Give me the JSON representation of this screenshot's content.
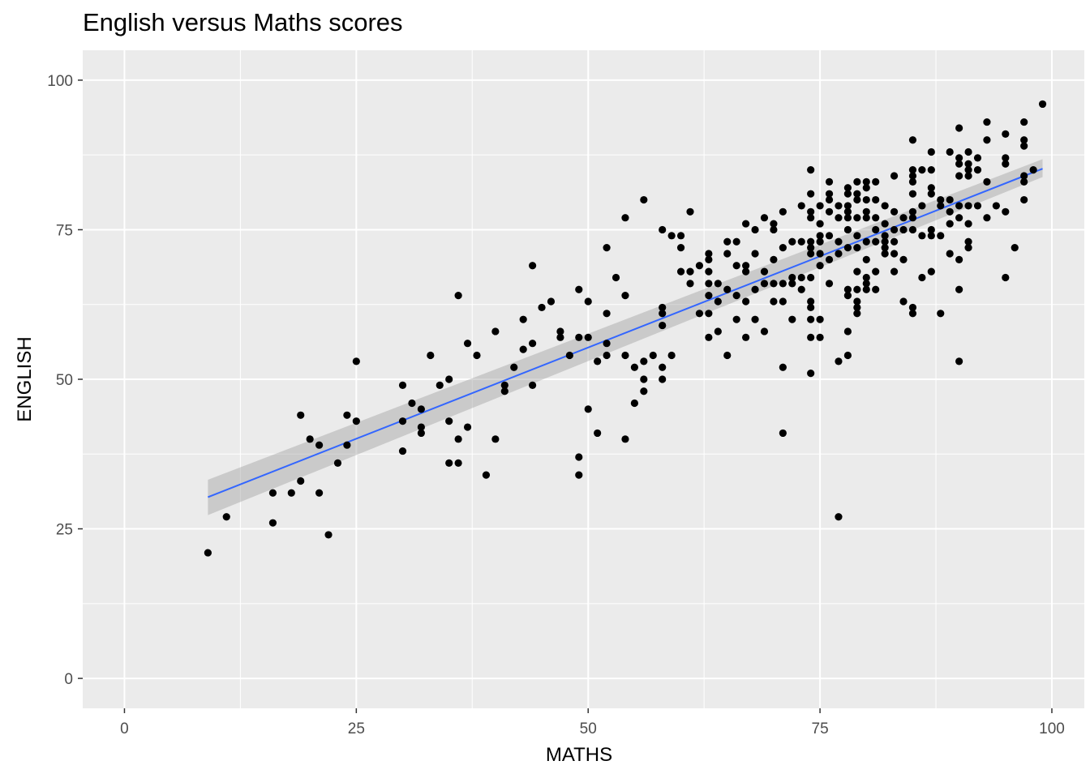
{
  "chart_data": {
    "type": "scatter",
    "title": "English versus Maths scores",
    "xlabel": "MATHS",
    "ylabel": "ENGLISH",
    "xlim": [
      -4.5,
      103.5
    ],
    "ylim": [
      -5,
      105
    ],
    "x_ticks": [
      0,
      25,
      50,
      75,
      100
    ],
    "y_ticks": [
      0,
      25,
      50,
      75,
      100
    ],
    "grid": true,
    "colors": {
      "panel": "#ebebeb",
      "grid": "#ffffff",
      "points": "#000000",
      "trend_line": "#3366ff",
      "confidence_band": "#999999"
    },
    "trend_line": {
      "method": "linear",
      "x": [
        9,
        99
      ],
      "y": [
        30.3,
        85.2
      ],
      "ci_lower": [
        27.3,
        83.8
      ],
      "ci_upper": [
        33.2,
        86.8
      ]
    },
    "points": [
      [
        9,
        21
      ],
      [
        11,
        27
      ],
      [
        16,
        31
      ],
      [
        16,
        26
      ],
      [
        18,
        31
      ],
      [
        19,
        44
      ],
      [
        19,
        33
      ],
      [
        20,
        40
      ],
      [
        21,
        39
      ],
      [
        21,
        31
      ],
      [
        22,
        24
      ],
      [
        23,
        36
      ],
      [
        24,
        44
      ],
      [
        24,
        39
      ],
      [
        25,
        43
      ],
      [
        25,
        53
      ],
      [
        30,
        49
      ],
      [
        30,
        43
      ],
      [
        30,
        38
      ],
      [
        31,
        46
      ],
      [
        32,
        45
      ],
      [
        32,
        42
      ],
      [
        32,
        41
      ],
      [
        33,
        54
      ],
      [
        34,
        49
      ],
      [
        35,
        50
      ],
      [
        35,
        43
      ],
      [
        35,
        36
      ],
      [
        36,
        64
      ],
      [
        36,
        40
      ],
      [
        36,
        36
      ],
      [
        37,
        56
      ],
      [
        37,
        42
      ],
      [
        38,
        54
      ],
      [
        39,
        34
      ],
      [
        40,
        58
      ],
      [
        40,
        40
      ],
      [
        41,
        49
      ],
      [
        41,
        48
      ],
      [
        42,
        52
      ],
      [
        43,
        60
      ],
      [
        43,
        55
      ],
      [
        44,
        69
      ],
      [
        44,
        56
      ],
      [
        44,
        49
      ],
      [
        45,
        62
      ],
      [
        46,
        63
      ],
      [
        47,
        58
      ],
      [
        47,
        57
      ],
      [
        48,
        54
      ],
      [
        49,
        65
      ],
      [
        49,
        57
      ],
      [
        49,
        37
      ],
      [
        49,
        34
      ],
      [
        50,
        63
      ],
      [
        50,
        57
      ],
      [
        50,
        45
      ],
      [
        51,
        53
      ],
      [
        51,
        41
      ],
      [
        52,
        72
      ],
      [
        52,
        61
      ],
      [
        52,
        56
      ],
      [
        52,
        54
      ],
      [
        53,
        67
      ],
      [
        54,
        77
      ],
      [
        54,
        64
      ],
      [
        54,
        54
      ],
      [
        54,
        40
      ],
      [
        55,
        52
      ],
      [
        55,
        46
      ],
      [
        56,
        80
      ],
      [
        56,
        53
      ],
      [
        56,
        50
      ],
      [
        56,
        48
      ],
      [
        57,
        54
      ],
      [
        58,
        75
      ],
      [
        58,
        62
      ],
      [
        58,
        61
      ],
      [
        58,
        59
      ],
      [
        58,
        52
      ],
      [
        58,
        50
      ],
      [
        59,
        74
      ],
      [
        59,
        54
      ],
      [
        60,
        74
      ],
      [
        60,
        72
      ],
      [
        60,
        68
      ],
      [
        61,
        78
      ],
      [
        61,
        68
      ],
      [
        61,
        66
      ],
      [
        62,
        69
      ],
      [
        62,
        61
      ],
      [
        63,
        71
      ],
      [
        63,
        70
      ],
      [
        63,
        68
      ],
      [
        63,
        66
      ],
      [
        63,
        64
      ],
      [
        63,
        61
      ],
      [
        63,
        57
      ],
      [
        64,
        66
      ],
      [
        64,
        63
      ],
      [
        64,
        58
      ],
      [
        65,
        73
      ],
      [
        65,
        71
      ],
      [
        65,
        65
      ],
      [
        65,
        54
      ],
      [
        66,
        73
      ],
      [
        66,
        69
      ],
      [
        66,
        64
      ],
      [
        66,
        60
      ],
      [
        67,
        76
      ],
      [
        67,
        69
      ],
      [
        67,
        68
      ],
      [
        67,
        63
      ],
      [
        67,
        57
      ],
      [
        68,
        75
      ],
      [
        68,
        71
      ],
      [
        68,
        65
      ],
      [
        68,
        60
      ],
      [
        69,
        77
      ],
      [
        69,
        68
      ],
      [
        69,
        66
      ],
      [
        69,
        58
      ],
      [
        70,
        76
      ],
      [
        70,
        75
      ],
      [
        70,
        70
      ],
      [
        70,
        66
      ],
      [
        70,
        63
      ],
      [
        71,
        78
      ],
      [
        71,
        72
      ],
      [
        71,
        66
      ],
      [
        71,
        63
      ],
      [
        71,
        52
      ],
      [
        71,
        41
      ],
      [
        72,
        73
      ],
      [
        72,
        67
      ],
      [
        72,
        66
      ],
      [
        72,
        60
      ],
      [
        73,
        79
      ],
      [
        73,
        73
      ],
      [
        73,
        67
      ],
      [
        73,
        65
      ],
      [
        74,
        85
      ],
      [
        74,
        81
      ],
      [
        74,
        78
      ],
      [
        74,
        77
      ],
      [
        74,
        73
      ],
      [
        74,
        72
      ],
      [
        74,
        71
      ],
      [
        74,
        67
      ],
      [
        74,
        63
      ],
      [
        74,
        62
      ],
      [
        74,
        60
      ],
      [
        74,
        57
      ],
      [
        74,
        51
      ],
      [
        75,
        79
      ],
      [
        75,
        76
      ],
      [
        75,
        74
      ],
      [
        75,
        73
      ],
      [
        75,
        71
      ],
      [
        75,
        69
      ],
      [
        75,
        60
      ],
      [
        75,
        57
      ],
      [
        76,
        83
      ],
      [
        76,
        81
      ],
      [
        76,
        80
      ],
      [
        76,
        78
      ],
      [
        76,
        74
      ],
      [
        76,
        70
      ],
      [
        76,
        66
      ],
      [
        77,
        79
      ],
      [
        77,
        77
      ],
      [
        77,
        73
      ],
      [
        77,
        71
      ],
      [
        77,
        53
      ],
      [
        77,
        27
      ],
      [
        78,
        82
      ],
      [
        78,
        81
      ],
      [
        78,
        79
      ],
      [
        78,
        78
      ],
      [
        78,
        77
      ],
      [
        78,
        75
      ],
      [
        78,
        72
      ],
      [
        78,
        65
      ],
      [
        78,
        64
      ],
      [
        78,
        58
      ],
      [
        78,
        54
      ],
      [
        79,
        83
      ],
      [
        79,
        81
      ],
      [
        79,
        80
      ],
      [
        79,
        77
      ],
      [
        79,
        74
      ],
      [
        79,
        72
      ],
      [
        79,
        68
      ],
      [
        79,
        65
      ],
      [
        79,
        63
      ],
      [
        79,
        62
      ],
      [
        79,
        61
      ],
      [
        80,
        83
      ],
      [
        80,
        82
      ],
      [
        80,
        80
      ],
      [
        80,
        78
      ],
      [
        80,
        77
      ],
      [
        80,
        73
      ],
      [
        80,
        70
      ],
      [
        80,
        67
      ],
      [
        80,
        66
      ],
      [
        80,
        65
      ],
      [
        81,
        83
      ],
      [
        81,
        80
      ],
      [
        81,
        77
      ],
      [
        81,
        75
      ],
      [
        81,
        73
      ],
      [
        81,
        68
      ],
      [
        81,
        65
      ],
      [
        82,
        79
      ],
      [
        82,
        76
      ],
      [
        82,
        74
      ],
      [
        82,
        73
      ],
      [
        82,
        72
      ],
      [
        82,
        71
      ],
      [
        83,
        84
      ],
      [
        83,
        78
      ],
      [
        83,
        75
      ],
      [
        83,
        73
      ],
      [
        83,
        71
      ],
      [
        83,
        68
      ],
      [
        84,
        77
      ],
      [
        84,
        75
      ],
      [
        84,
        70
      ],
      [
        84,
        63
      ],
      [
        85,
        90
      ],
      [
        85,
        85
      ],
      [
        85,
        84
      ],
      [
        85,
        83
      ],
      [
        85,
        81
      ],
      [
        85,
        78
      ],
      [
        85,
        77
      ],
      [
        85,
        75
      ],
      [
        85,
        62
      ],
      [
        85,
        61
      ],
      [
        86,
        85
      ],
      [
        86,
        79
      ],
      [
        86,
        74
      ],
      [
        86,
        67
      ],
      [
        87,
        88
      ],
      [
        87,
        85
      ],
      [
        87,
        82
      ],
      [
        87,
        81
      ],
      [
        87,
        75
      ],
      [
        87,
        74
      ],
      [
        87,
        68
      ],
      [
        88,
        80
      ],
      [
        88,
        79
      ],
      [
        88,
        74
      ],
      [
        88,
        61
      ],
      [
        89,
        88
      ],
      [
        89,
        80
      ],
      [
        89,
        78
      ],
      [
        89,
        76
      ],
      [
        89,
        71
      ],
      [
        90,
        92
      ],
      [
        90,
        87
      ],
      [
        90,
        86
      ],
      [
        90,
        84
      ],
      [
        90,
        79
      ],
      [
        90,
        77
      ],
      [
        90,
        70
      ],
      [
        90,
        65
      ],
      [
        90,
        53
      ],
      [
        91,
        88
      ],
      [
        91,
        86
      ],
      [
        91,
        85
      ],
      [
        91,
        84
      ],
      [
        91,
        79
      ],
      [
        91,
        76
      ],
      [
        91,
        73
      ],
      [
        91,
        72
      ],
      [
        92,
        87
      ],
      [
        92,
        85
      ],
      [
        92,
        79
      ],
      [
        93,
        93
      ],
      [
        93,
        90
      ],
      [
        93,
        83
      ],
      [
        93,
        77
      ],
      [
        94,
        79
      ],
      [
        95,
        91
      ],
      [
        95,
        87
      ],
      [
        95,
        86
      ],
      [
        95,
        78
      ],
      [
        95,
        67
      ],
      [
        96,
        72
      ],
      [
        97,
        93
      ],
      [
        97,
        90
      ],
      [
        97,
        89
      ],
      [
        97,
        84
      ],
      [
        97,
        83
      ],
      [
        97,
        80
      ],
      [
        98,
        85
      ],
      [
        99,
        96
      ]
    ]
  }
}
